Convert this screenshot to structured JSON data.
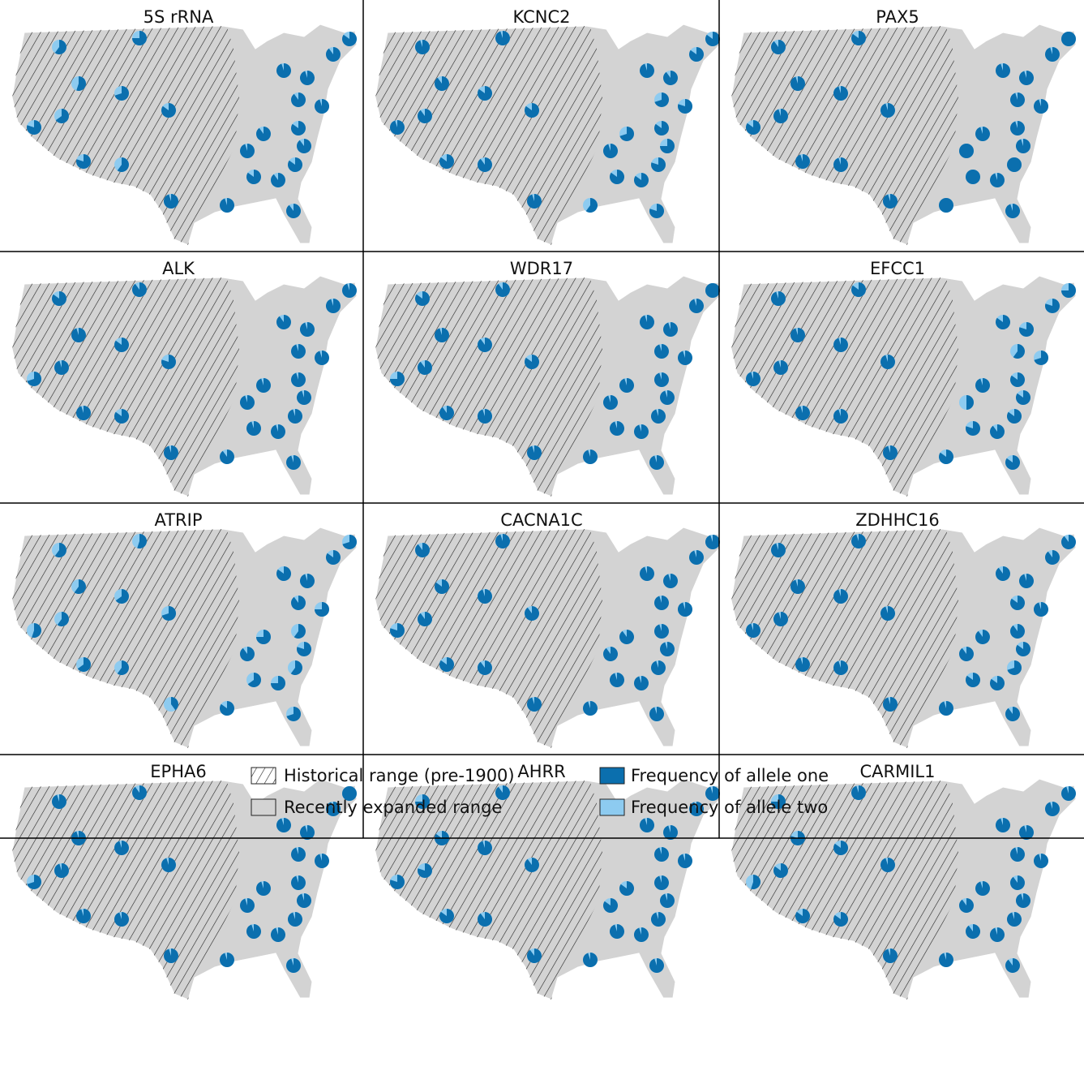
{
  "panels": [
    {
      "title": "5S rRNA",
      "allele_one": [
        60,
        75,
        55,
        70,
        80,
        65,
        85,
        80,
        60,
        95,
        85,
        90,
        95,
        95,
        90,
        95,
        90,
        85,
        90,
        95,
        85,
        85,
        90,
        95,
        90
      ]
    },
    {
      "title": "KCNC2",
      "allele_one": [
        95,
        95,
        90,
        85,
        95,
        90,
        85,
        85,
        90,
        95,
        85,
        85,
        95,
        90,
        70,
        80,
        70,
        85,
        75,
        95,
        80,
        85,
        85,
        60,
        80
      ]
    },
    {
      "title": "PAX5",
      "allele_one": [
        90,
        85,
        95,
        95,
        85,
        95,
        95,
        95,
        95,
        95,
        100,
        95,
        95,
        95,
        95,
        95,
        95,
        95,
        95,
        100,
        100,
        100,
        95,
        100,
        95
      ]
    },
    {
      "title": "ALK",
      "allele_one": [
        85,
        90,
        95,
        85,
        70,
        95,
        80,
        95,
        85,
        95,
        95,
        95,
        90,
        95,
        95,
        95,
        95,
        95,
        95,
        95,
        95,
        95,
        95,
        90,
        95
      ]
    },
    {
      "title": "WDR17",
      "allele_one": [
        85,
        90,
        95,
        90,
        75,
        90,
        85,
        90,
        95,
        95,
        100,
        95,
        95,
        95,
        95,
        95,
        95,
        95,
        95,
        95,
        95,
        95,
        95,
        95,
        95
      ]
    },
    {
      "title": "EFCC1",
      "allele_one": [
        95,
        85,
        95,
        95,
        95,
        95,
        95,
        95,
        95,
        95,
        75,
        80,
        85,
        80,
        60,
        70,
        95,
        85,
        85,
        50,
        85,
        80,
        90,
        85,
        85
      ]
    },
    {
      "title": "ATRIP",
      "allele_one": [
        60,
        55,
        60,
        65,
        55,
        60,
        70,
        65,
        60,
        40,
        70,
        85,
        85,
        95,
        90,
        75,
        75,
        60,
        80,
        90,
        60,
        65,
        75,
        85,
        70
      ]
    },
    {
      "title": "CACNA1C",
      "allele_one": [
        90,
        95,
        85,
        95,
        80,
        90,
        90,
        85,
        90,
        95,
        95,
        95,
        95,
        95,
        95,
        95,
        90,
        95,
        95,
        90,
        95,
        95,
        95,
        95,
        95
      ]
    },
    {
      "title": "ZDHHC16",
      "allele_one": [
        95,
        95,
        95,
        95,
        95,
        95,
        95,
        95,
        95,
        95,
        90,
        90,
        90,
        95,
        85,
        95,
        90,
        90,
        85,
        90,
        70,
        85,
        85,
        95,
        90
      ]
    },
    {
      "title": "EPHA6",
      "allele_one": [
        95,
        90,
        95,
        95,
        70,
        95,
        95,
        95,
        95,
        95,
        100,
        95,
        95,
        95,
        95,
        95,
        95,
        95,
        95,
        95,
        95,
        95,
        95,
        95,
        95
      ]
    },
    {
      "title": "AHRR",
      "allele_one": [
        75,
        90,
        85,
        95,
        80,
        80,
        90,
        85,
        90,
        90,
        95,
        95,
        95,
        95,
        95,
        95,
        85,
        95,
        95,
        85,
        95,
        95,
        95,
        95,
        95
      ]
    },
    {
      "title": "CARMIL1",
      "allele_one": [
        75,
        95,
        80,
        85,
        55,
        85,
        95,
        85,
        85,
        95,
        95,
        95,
        95,
        95,
        95,
        95,
        95,
        90,
        95,
        90,
        95,
        90,
        95,
        95,
        90
      ]
    }
  ],
  "colors": {
    "allele_one": "#0b6fae",
    "allele_two": "#8dcbf0",
    "range": "#d3d3d3"
  },
  "legend": {
    "historical": "Historical range (pre-1900)",
    "expanded": "Recently expanded range",
    "allele_one": "Frequency of allele one",
    "allele_two": "Frequency of allele two"
  }
}
